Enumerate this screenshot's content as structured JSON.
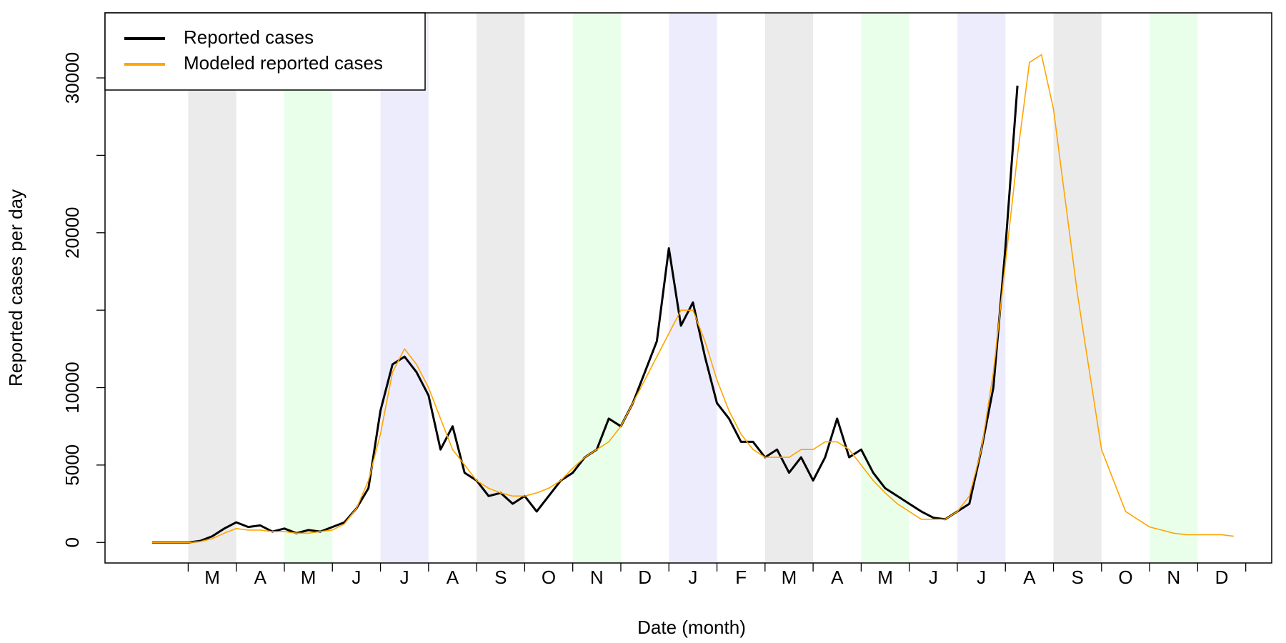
{
  "chart_data": {
    "type": "line",
    "xlabel": "Date (month)",
    "ylabel": "Reported cases per day",
    "x": [
      -0.25,
      0,
      0.25,
      0.5,
      0.75,
      1,
      1.25,
      1.5,
      1.75,
      2,
      2.25,
      2.5,
      2.75,
      3,
      3.25,
      3.5,
      3.75,
      4,
      4.25,
      4.5,
      4.75,
      5,
      5.25,
      5.5,
      5.75,
      6,
      6.25,
      6.5,
      6.75,
      7,
      7.25,
      7.5,
      7.75,
      8,
      8.25,
      8.5,
      8.75,
      9,
      9.25,
      9.5,
      9.75,
      10,
      10.25,
      10.5,
      10.75,
      11,
      11.25,
      11.5,
      11.75,
      12,
      12.25,
      12.5,
      12.75,
      13,
      13.25,
      13.5,
      13.75,
      14,
      14.25,
      14.5,
      14.75,
      15,
      15.25,
      15.5,
      15.75,
      16,
      16.25,
      16.5,
      16.75,
      17,
      17.25,
      17.5,
      17.75,
      18,
      18.25,
      18.5,
      18.75,
      19,
      19.25,
      19.5,
      19.75,
      20,
      20.25,
      20.5,
      20.75,
      21,
      21.25,
      21.5,
      21.75,
      22,
      22.25
    ],
    "series": [
      {
        "name": "Reported cases",
        "color": "#000000",
        "width": 3,
        "values": [
          0,
          0,
          0,
          0,
          100,
          400,
          900,
          1300,
          1000,
          1100,
          700,
          900,
          600,
          800,
          700,
          1000,
          1300,
          2200,
          3500,
          8500,
          11500,
          12000,
          11000,
          9500,
          6000,
          7500,
          4500,
          4000,
          3000,
          3200,
          2500,
          3000,
          2000,
          3000,
          4000,
          4500,
          5500,
          6000,
          8000,
          7500,
          9000,
          11000,
          13000,
          19000,
          14000,
          15500,
          12000,
          9000,
          8000,
          6500,
          6500,
          5500,
          6000,
          4500,
          5500,
          4000,
          5500,
          8000,
          5500,
          6000,
          4500,
          3500,
          3000,
          2500,
          2000,
          1600,
          1500,
          2000,
          2500,
          6000,
          10000,
          19000,
          29500,
          null,
          null,
          null,
          null,
          null,
          null,
          null,
          null,
          null,
          null,
          null,
          null,
          null,
          null,
          null,
          null,
          null,
          null
        ]
      },
      {
        "name": "Modeled reported cases",
        "color": "#ffa500",
        "width": 1.6,
        "values": [
          0,
          0,
          0,
          0,
          50,
          250,
          600,
          900,
          800,
          800,
          700,
          700,
          600,
          600,
          700,
          800,
          1200,
          2200,
          4000,
          7000,
          11000,
          12500,
          11500,
          10000,
          8000,
          6000,
          5000,
          4000,
          3500,
          3200,
          3000,
          3000,
          3200,
          3500,
          4000,
          4800,
          5500,
          6000,
          6500,
          7500,
          9000,
          10500,
          12000,
          13500,
          15000,
          15000,
          13000,
          10500,
          8500,
          7000,
          6000,
          5500,
          5500,
          5500,
          6000,
          6000,
          6500,
          6500,
          6000,
          5000,
          4000,
          3200,
          2500,
          2000,
          1500,
          1500,
          1500,
          2000,
          3000,
          6000,
          11000,
          18000,
          25000,
          31000,
          31500,
          28000,
          22000,
          16000,
          11000,
          6000,
          4000,
          2000,
          1500,
          1000,
          800,
          600,
          500,
          500,
          500,
          500,
          400
        ]
      }
    ],
    "xlim": [
      -1.23,
      23.04
    ],
    "xticks": [
      {
        "value": 1,
        "label": "M"
      },
      {
        "value": 2,
        "label": "A"
      },
      {
        "value": 3,
        "label": "M"
      },
      {
        "value": 4,
        "label": "J"
      },
      {
        "value": 5,
        "label": "J"
      },
      {
        "value": 6,
        "label": "A"
      },
      {
        "value": 7,
        "label": "S"
      },
      {
        "value": 8,
        "label": "O"
      },
      {
        "value": 9,
        "label": "N"
      },
      {
        "value": 10,
        "label": "D"
      },
      {
        "value": 11,
        "label": "J"
      },
      {
        "value": 12,
        "label": "F"
      },
      {
        "value": 13,
        "label": "M"
      },
      {
        "value": 14,
        "label": "A"
      },
      {
        "value": 15,
        "label": "M"
      },
      {
        "value": 16,
        "label": "J"
      },
      {
        "value": 17,
        "label": "J"
      },
      {
        "value": 18,
        "label": "A"
      },
      {
        "value": 19,
        "label": "S"
      },
      {
        "value": 20,
        "label": "O"
      },
      {
        "value": 21,
        "label": "N"
      },
      {
        "value": 22,
        "label": "D"
      }
    ],
    "month_shading": [
      "#ebebeb",
      null,
      "#eaffea",
      null,
      "#ececfc",
      null,
      "#ebebeb",
      null,
      "#eaffea",
      null,
      "#ececfc",
      null,
      "#ebebeb",
      null,
      "#eaffea",
      null,
      "#ececfc",
      null,
      "#ebebeb",
      null,
      "#eaffea",
      null
    ],
    "ylim": [
      -1325,
      34200
    ],
    "yticks": [
      0,
      5000,
      10000,
      20000,
      30000
    ],
    "yminor_ticks": [
      15000,
      25000
    ],
    "legend": "top-left"
  }
}
